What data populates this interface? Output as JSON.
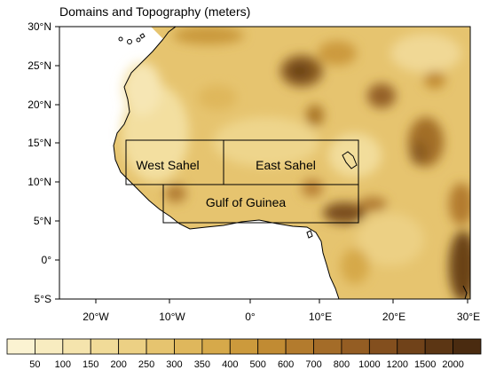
{
  "title": "Domains and Topography (meters)",
  "map": {
    "lat_labels": [
      "30°N",
      "25°N",
      "20°N",
      "15°N",
      "10°N",
      "5°N",
      "0°",
      "5°S"
    ],
    "lon_labels": [
      "20°W",
      "10°W",
      "0°",
      "10°E",
      "20°E",
      "30°E"
    ],
    "lon_range_deg": [
      -26,
      30
    ],
    "lat_range_deg": [
      -5,
      30
    ],
    "ocean_color": "#ffffff",
    "coastline_color": "#000000",
    "domains": [
      {
        "label": "West Sahel",
        "lon": [
          -16,
          -3
        ],
        "lat": [
          10,
          16
        ]
      },
      {
        "label": "East Sahel",
        "lon": [
          -3,
          15
        ],
        "lat": [
          10,
          16
        ]
      },
      {
        "label": "Gulf of Guinea",
        "lon": [
          -11,
          15
        ],
        "lat": [
          5,
          10
        ]
      }
    ]
  },
  "colorbar": {
    "tick_labels": [
      "50",
      "100",
      "150",
      "200",
      "250",
      "300",
      "350",
      "400",
      "500",
      "600",
      "700",
      "800",
      "1000",
      "1200",
      "1500",
      "2000"
    ],
    "colors": [
      "#fbf3d2",
      "#f8ecc0",
      "#f5e4ad",
      "#f1db98",
      "#ecd084",
      "#e6c46f",
      "#dfb75c",
      "#d6a94a",
      "#cc9a3c",
      "#c18b33",
      "#b37b2d",
      "#a46c28",
      "#945d23",
      "#834f1e",
      "#704219",
      "#5c3614",
      "#4a2b10"
    ]
  }
}
